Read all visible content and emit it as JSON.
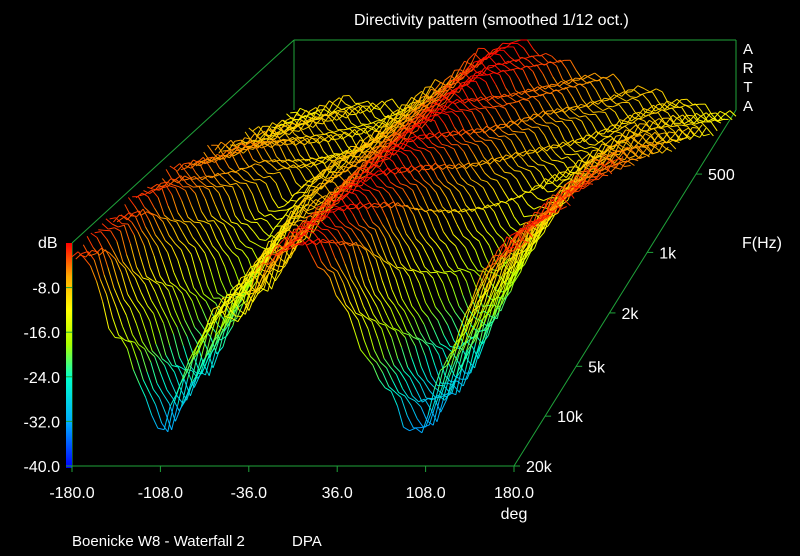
{
  "title": "Directivity pattern (smoothed 1/12 oct.)",
  "brand_letters": [
    "A",
    "R",
    "T",
    "A"
  ],
  "footer": {
    "left": "Boenicke W8 - Waterfall 2",
    "right": "DPA"
  },
  "chart_data": {
    "type": "waterfall-3d",
    "title": "Directivity pattern (smoothed 1/12 oct.)",
    "xlabel": "deg",
    "xlim": [
      -180,
      180
    ],
    "x_ticks": [
      "-180.0",
      "-108.0",
      "-36.0",
      "36.0",
      "108.0",
      "180.0"
    ],
    "ylabel": "dB",
    "ylim": [
      -40,
      0
    ],
    "y_ticks": [
      "-8.0",
      "-16.0",
      "-24.0",
      "-32.0",
      "-40.0"
    ],
    "zlabel": "F(Hz)",
    "z_ticks": [
      "500",
      "1k",
      "2k",
      "5k",
      "10k",
      "20k"
    ],
    "angles_deg": [
      -180,
      -165,
      -150,
      -135,
      -120,
      -105,
      -90,
      -75,
      -60,
      -45,
      -30,
      -15,
      0,
      15,
      30,
      45,
      60,
      75,
      90,
      105,
      120,
      135,
      150,
      165,
      180
    ],
    "series": [
      {
        "freq": "20k",
        "values": [
          -2,
          -4,
          -14,
          -20,
          -28,
          -34,
          -24,
          -16,
          -12,
          -14,
          -6,
          -2,
          0,
          -2,
          -6,
          -14,
          -20,
          -26,
          -32,
          -34,
          -24,
          -16,
          -8,
          -2,
          -1
        ]
      },
      {
        "freq": "10k",
        "values": [
          -2,
          -3,
          -10,
          -16,
          -24,
          -30,
          -22,
          -14,
          -10,
          -12,
          -5,
          -2,
          0,
          -2,
          -5,
          -12,
          -18,
          -24,
          -30,
          -32,
          -22,
          -14,
          -6,
          -2,
          -1
        ]
      },
      {
        "freq": "5k",
        "values": [
          -3,
          -3,
          -6,
          -10,
          -16,
          -20,
          -16,
          -10,
          -8,
          -8,
          -4,
          -2,
          0,
          -2,
          -4,
          -8,
          -12,
          -16,
          -22,
          -22,
          -16,
          -10,
          -5,
          -3,
          -2
        ]
      },
      {
        "freq": "2k",
        "values": [
          -6,
          -6,
          -5,
          -6,
          -8,
          -10,
          -10,
          -8,
          -7,
          -6,
          -4,
          -2,
          0,
          -2,
          -4,
          -6,
          -8,
          -10,
          -12,
          -12,
          -10,
          -8,
          -6,
          -6,
          -6
        ]
      },
      {
        "freq": "1k",
        "values": [
          -10,
          -10,
          -9,
          -9,
          -10,
          -11,
          -12,
          -10,
          -8,
          -6,
          -4,
          -2,
          0,
          -2,
          -4,
          -5,
          -6,
          -8,
          -10,
          -11,
          -10,
          -9,
          -9,
          -10,
          -10
        ]
      },
      {
        "freq": "500",
        "values": [
          -14,
          -13,
          -12,
          -11,
          -11,
          -12,
          -12,
          -10,
          -8,
          -6,
          -3,
          -1,
          0,
          -1,
          -3,
          -5,
          -6,
          -7,
          -8,
          -9,
          -10,
          -11,
          -12,
          -13,
          -14
        ]
      }
    ],
    "colormap": [
      "#0000ff",
      "#00aaff",
      "#00ffcc",
      "#aaff00",
      "#ffff00",
      "#ffaa00",
      "#ff0000"
    ],
    "grid": false
  }
}
